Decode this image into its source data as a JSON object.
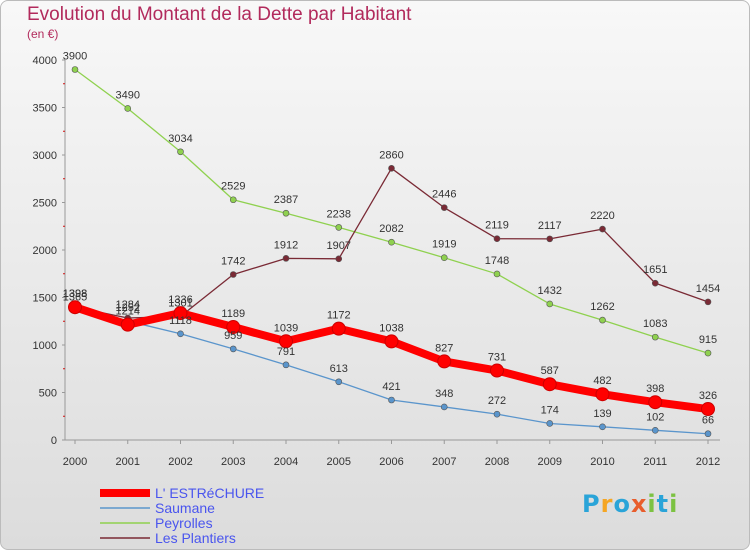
{
  "header": {
    "title": "Evolution du Montant de la Dette par Habitant",
    "subtitle": "(en €)"
  },
  "logo": {
    "text": "Proxiti"
  },
  "chart_data": {
    "type": "line",
    "title": "Evolution du Montant de la Dette par Habitant",
    "subtitle": "(en €)",
    "xlabel": "",
    "ylabel": "",
    "ylim": [
      0,
      4000
    ],
    "yticks": [
      0,
      500,
      1000,
      1500,
      2000,
      2500,
      3000,
      3500,
      4000
    ],
    "categories": [
      "2000",
      "2001",
      "2002",
      "2003",
      "2004",
      "2005",
      "2006",
      "2007",
      "2008",
      "2009",
      "2010",
      "2011",
      "2012"
    ],
    "grid": false,
    "legend_position": "bottom-left",
    "series": [
      {
        "name": "Peyrolles",
        "color": "#8fd14f",
        "values": [
          3900,
          3490,
          3034,
          2529,
          2387,
          2238,
          2082,
          1919,
          1748,
          1432,
          1262,
          1083,
          915
        ]
      },
      {
        "name": "Les Plantiers",
        "color": "#7a2a35",
        "values": [
          1398,
          1284,
          1301,
          1742,
          1912,
          1907,
          2860,
          2446,
          2119,
          2117,
          2220,
          1651,
          1454
        ]
      },
      {
        "name": "Saumane",
        "color": "#5a95cc",
        "values": [
          1365,
          1252,
          1118,
          959,
          791,
          613,
          421,
          348,
          272,
          174,
          139,
          102,
          66
        ]
      },
      {
        "name": "L' ESTRéCHURE",
        "color": "#ff0000",
        "values": [
          1398,
          1214,
          1336,
          1189,
          1039,
          1172,
          1038,
          827,
          731,
          587,
          482,
          398,
          326
        ]
      }
    ]
  }
}
